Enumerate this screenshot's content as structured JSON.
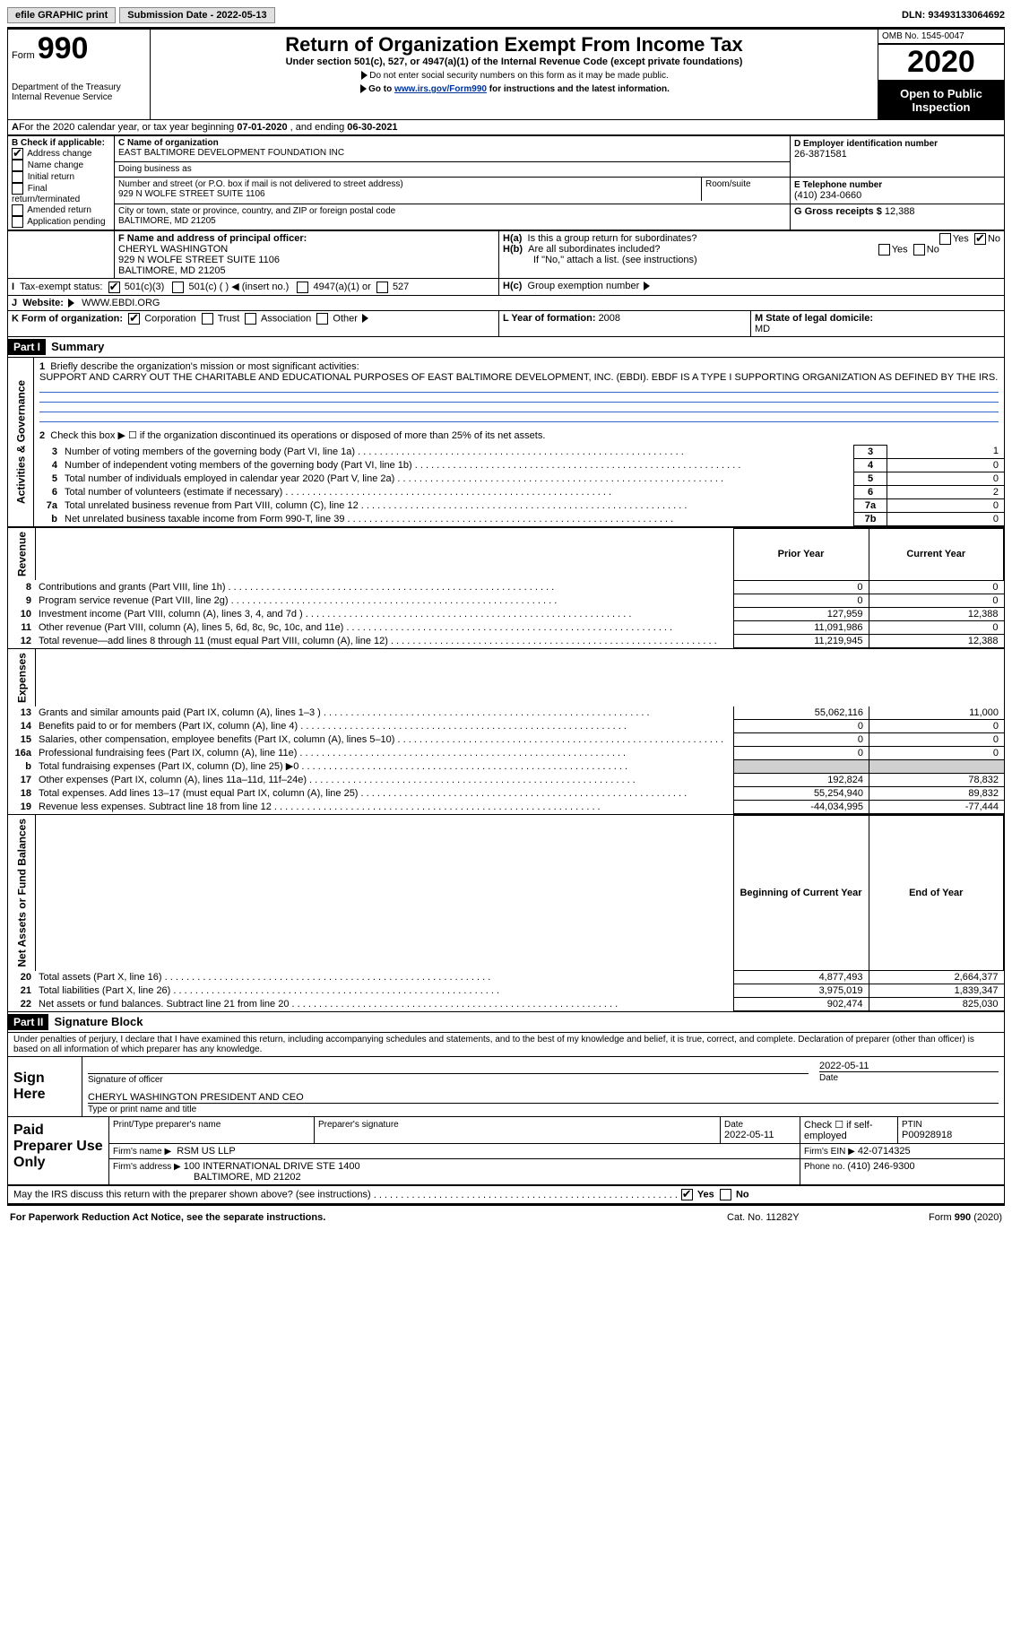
{
  "top": {
    "efile": "efile GRAPHIC print",
    "submission_label": "Submission Date - 2022-05-13",
    "dln_label": "DLN: 93493133064692"
  },
  "header": {
    "form_word": "Form",
    "form_num": "990",
    "dept": "Department of the Treasury",
    "irs": "Internal Revenue Service",
    "title": "Return of Organization Exempt From Income Tax",
    "subtitle": "Under section 501(c), 527, or 4947(a)(1) of the Internal Revenue Code (except private foundations)",
    "note1": "Do not enter social security numbers on this form as it may be made public.",
    "note2_pre": "Go to ",
    "note2_link": "www.irs.gov/Form990",
    "note2_post": " for instructions and the latest information.",
    "omb": "OMB No. 1545-0047",
    "year": "2020",
    "open": "Open to Public Inspection"
  },
  "A": {
    "text_pre": "For the 2020 calendar year, or tax year beginning ",
    "begin": "07-01-2020",
    "mid": " , and ending ",
    "end": "06-30-2021"
  },
  "B": {
    "label": "B Check if applicable:",
    "items": [
      "Address change",
      "Name change",
      "Initial return",
      "Final return/terminated",
      "Amended return",
      "Application pending"
    ],
    "checked_idx": 0
  },
  "C": {
    "name_label": "C Name of organization",
    "name": "EAST BALTIMORE DEVELOPMENT FOUNDATION INC",
    "dba_label": "Doing business as",
    "street_label": "Number and street (or P.O. box if mail is not delivered to street address)",
    "room_label": "Room/suite",
    "street": "929 N WOLFE STREET SUITE 1106",
    "city_label": "City or town, state or province, country, and ZIP or foreign postal code",
    "city": "BALTIMORE, MD  21205"
  },
  "D": {
    "label": "D Employer identification number",
    "value": "26-3871581"
  },
  "E": {
    "label": "E Telephone number",
    "value": "(410) 234-0660"
  },
  "G": {
    "label": "G Gross receipts $ ",
    "value": "12,388"
  },
  "F": {
    "label": "F  Name and address of principal officer:",
    "name": "CHERYL WASHINGTON",
    "street": "929 N WOLFE STREET SUITE 1106",
    "city": "BALTIMORE, MD  21205"
  },
  "H": {
    "a": "Is this a group return for subordinates?",
    "b": "Are all subordinates included?",
    "b_note": "If \"No,\" attach a list. (see instructions)",
    "c": "Group exemption number",
    "yes": "Yes",
    "no": "No"
  },
  "I": {
    "label": "Tax-exempt status:",
    "opts": [
      "501(c)(3)",
      "501(c) (  ) ◀ (insert no.)",
      "4947(a)(1) or",
      "527"
    ]
  },
  "J": {
    "label": "Website:",
    "value": "WWW.EBDI.ORG"
  },
  "K": {
    "label": "K Form of organization:",
    "opts": [
      "Corporation",
      "Trust",
      "Association",
      "Other"
    ]
  },
  "L": {
    "label": "L Year of formation: ",
    "value": "2008"
  },
  "M": {
    "label": "M State of legal domicile: ",
    "value": "MD"
  },
  "part1": {
    "hdr": "Part I",
    "title": "Summary",
    "l1_label": "Briefly describe the organization's mission or most significant activities:",
    "l1_text": "SUPPORT AND CARRY OUT THE CHARITABLE AND EDUCATIONAL PURPOSES OF EAST BALTIMORE DEVELOPMENT, INC. (EBDI). EBDF IS A TYPE I SUPPORTING ORGANIZATION AS DEFINED BY THE IRS.",
    "l2": "Check this box ▶ ☐  if the organization discontinued its operations or disposed of more than 25% of its net assets.",
    "rows_gov": [
      {
        "n": "3",
        "d": "Number of voting members of the governing body (Part VI, line 1a)",
        "i": "3",
        "v": "1"
      },
      {
        "n": "4",
        "d": "Number of independent voting members of the governing body (Part VI, line 1b)",
        "i": "4",
        "v": "0"
      },
      {
        "n": "5",
        "d": "Total number of individuals employed in calendar year 2020 (Part V, line 2a)",
        "i": "5",
        "v": "0"
      },
      {
        "n": "6",
        "d": "Total number of volunteers (estimate if necessary)",
        "i": "6",
        "v": "2"
      },
      {
        "n": "7a",
        "d": "Total unrelated business revenue from Part VIII, column (C), line 12",
        "i": "7a",
        "v": "0"
      },
      {
        "n": "b",
        "d": "Net unrelated business taxable income from Form 990-T, line 39",
        "i": "7b",
        "v": "0"
      }
    ],
    "col_prior": "Prior Year",
    "col_curr": "Current Year",
    "rows_rev": [
      {
        "n": "8",
        "d": "Contributions and grants (Part VIII, line 1h)",
        "p": "0",
        "c": "0"
      },
      {
        "n": "9",
        "d": "Program service revenue (Part VIII, line 2g)",
        "p": "0",
        "c": "0"
      },
      {
        "n": "10",
        "d": "Investment income (Part VIII, column (A), lines 3, 4, and 7d )",
        "p": "127,959",
        "c": "12,388"
      },
      {
        "n": "11",
        "d": "Other revenue (Part VIII, column (A), lines 5, 6d, 8c, 9c, 10c, and 11e)",
        "p": "11,091,986",
        "c": "0"
      },
      {
        "n": "12",
        "d": "Total revenue—add lines 8 through 11 (must equal Part VIII, column (A), line 12)",
        "p": "11,219,945",
        "c": "12,388"
      }
    ],
    "rows_exp": [
      {
        "n": "13",
        "d": "Grants and similar amounts paid (Part IX, column (A), lines 1–3 )",
        "p": "55,062,116",
        "c": "11,000"
      },
      {
        "n": "14",
        "d": "Benefits paid to or for members (Part IX, column (A), line 4)",
        "p": "0",
        "c": "0"
      },
      {
        "n": "15",
        "d": "Salaries, other compensation, employee benefits (Part IX, column (A), lines 5–10)",
        "p": "0",
        "c": "0"
      },
      {
        "n": "16a",
        "d": "Professional fundraising fees (Part IX, column (A), line 11e)",
        "p": "0",
        "c": "0"
      },
      {
        "n": "b",
        "d": "Total fundraising expenses (Part IX, column (D), line 25) ▶0",
        "p": "",
        "c": "",
        "shade": true
      },
      {
        "n": "17",
        "d": "Other expenses (Part IX, column (A), lines 11a–11d, 11f–24e)",
        "p": "192,824",
        "c": "78,832"
      },
      {
        "n": "18",
        "d": "Total expenses. Add lines 13–17 (must equal Part IX, column (A), line 25)",
        "p": "55,254,940",
        "c": "89,832"
      },
      {
        "n": "19",
        "d": "Revenue less expenses. Subtract line 18 from line 12",
        "p": "-44,034,995",
        "c": "-77,444"
      }
    ],
    "col_begin": "Beginning of Current Year",
    "col_end": "End of Year",
    "rows_net": [
      {
        "n": "20",
        "d": "Total assets (Part X, line 16)",
        "p": "4,877,493",
        "c": "2,664,377"
      },
      {
        "n": "21",
        "d": "Total liabilities (Part X, line 26)",
        "p": "3,975,019",
        "c": "1,839,347"
      },
      {
        "n": "22",
        "d": "Net assets or fund balances. Subtract line 21 from line 20",
        "p": "902,474",
        "c": "825,030"
      }
    ],
    "side_gov": "Activities & Governance",
    "side_rev": "Revenue",
    "side_exp": "Expenses",
    "side_net": "Net Assets or Fund Balances"
  },
  "part2": {
    "hdr": "Part II",
    "title": "Signature Block",
    "decl": "Under penalties of perjury, I declare that I have examined this return, including accompanying schedules and statements, and to the best of my knowledge and belief, it is true, correct, and complete. Declaration of preparer (other than officer) is based on all information of which preparer has any knowledge.",
    "sign_here": "Sign Here",
    "sig_officer": "Signature of officer",
    "sig_date": "Date",
    "sig_date_val": "2022-05-11",
    "officer_name": "CHERYL WASHINGTON  PRESIDENT AND CEO",
    "officer_label": "Type or print name and title",
    "paid": "Paid Preparer Use Only",
    "prep_name_label": "Print/Type preparer's name",
    "prep_sig_label": "Preparer's signature",
    "prep_date_label": "Date",
    "prep_date": "2022-05-11",
    "check_if": "Check ☐ if self-employed",
    "ptin_label": "PTIN",
    "ptin": "P00928918",
    "firm_name_label": "Firm's name   ▶",
    "firm_name": "RSM US LLP",
    "firm_ein_label": "Firm's EIN ▶",
    "firm_ein": "42-0714325",
    "firm_addr_label": "Firm's address ▶",
    "firm_addr1": "100 INTERNATIONAL DRIVE STE 1400",
    "firm_addr2": "BALTIMORE, MD  21202",
    "phone_label": "Phone no. ",
    "phone": "(410) 246-9300",
    "discuss": "May the IRS discuss this return with the preparer shown above? (see instructions)",
    "yes": "Yes",
    "no": "No"
  },
  "footer": {
    "pra": "For Paperwork Reduction Act Notice, see the separate instructions.",
    "cat": "Cat. No. 11282Y",
    "form": "Form 990 (2020)"
  }
}
